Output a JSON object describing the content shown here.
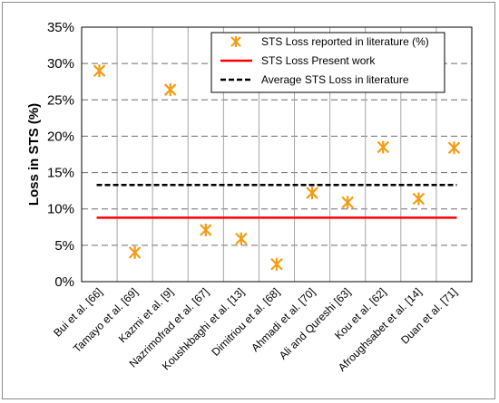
{
  "chart_data": {
    "type": "scatter",
    "title": "",
    "xlabel": "",
    "ylabel": "Loss in STS (%)",
    "ylim": [
      0,
      35
    ],
    "yticks": [
      "0%",
      "5%",
      "10%",
      "15%",
      "20%",
      "25%",
      "30%",
      "35%"
    ],
    "ytick_values": [
      0,
      5,
      10,
      15,
      20,
      25,
      30,
      35
    ],
    "grid": "horizontal dashed + vertical solid",
    "legend_position": "top-right",
    "categories": [
      "Bui et al. [66]",
      "Tamayo et al. [69]",
      "Kazmi et al. [9]",
      "Nazrimofrad et al. [67]",
      "Koushkbaghi et al. [13]",
      "Dimitriou et al. [68]",
      "Ahmadi et al. [70]",
      "Ali and Qureshi [63]",
      "Kou et al. [62]",
      "Afroughsabet et al. [14]",
      "Duan et al. [71]"
    ],
    "series": [
      {
        "name": "STS Loss reported in literature (%)",
        "marker": "asterisk",
        "color": "#f39c12",
        "values": [
          29.0,
          4.0,
          26.4,
          7.1,
          5.9,
          2.4,
          12.2,
          10.9,
          18.5,
          11.4,
          18.4
        ]
      },
      {
        "name": "STS Loss Present work",
        "line": "solid",
        "color": "#ff0000",
        "value": 8.8
      },
      {
        "name": "Average STS Loss in literature",
        "line": "dashed",
        "color": "#000000",
        "value": 13.3
      }
    ]
  }
}
